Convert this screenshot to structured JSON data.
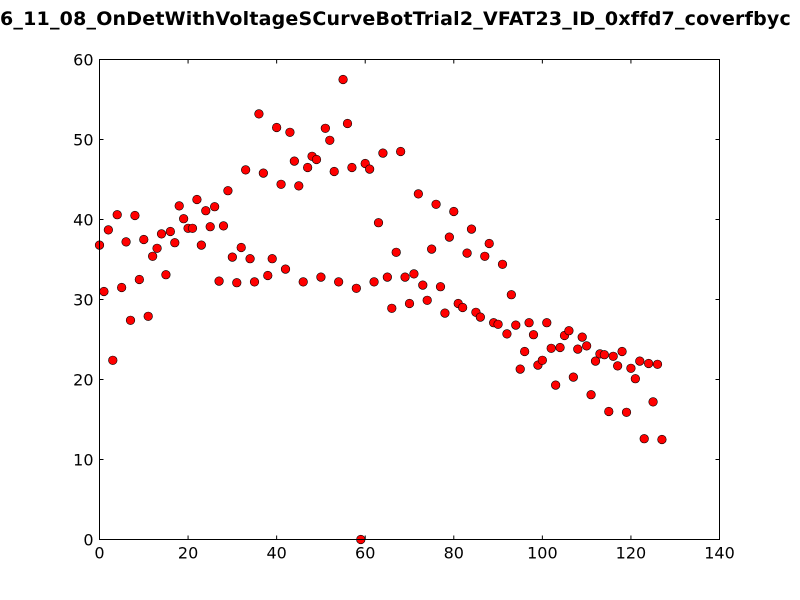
{
  "chart_data": {
    "type": "scatter",
    "title": "6_11_08_OnDetWithVoltageSCurveBotTrial2_VFAT23_ID_0xffd7_coverfbyc",
    "xlabel": "",
    "ylabel": "",
    "xlim": [
      0,
      140
    ],
    "ylim": [
      0,
      60
    ],
    "xticks": [
      "0",
      "20",
      "40",
      "60",
      "80",
      "100",
      "120",
      "140"
    ],
    "yticks": [
      "0",
      "10",
      "20",
      "30",
      "40",
      "50",
      "60"
    ],
    "marker_color": "#ff0000",
    "marker_edge": "#000000",
    "grid": false,
    "series": [
      {
        "points": [
          [
            0,
            36.8
          ],
          [
            1,
            31.0
          ],
          [
            2,
            38.7
          ],
          [
            3,
            22.4
          ],
          [
            4,
            40.6
          ],
          [
            5,
            31.5
          ],
          [
            6,
            37.2
          ],
          [
            7,
            27.4
          ],
          [
            8,
            40.5
          ],
          [
            9,
            32.5
          ],
          [
            10,
            37.5
          ],
          [
            11,
            27.9
          ],
          [
            12,
            35.4
          ],
          [
            13,
            36.4
          ],
          [
            14,
            38.2
          ],
          [
            15,
            33.1
          ],
          [
            16,
            38.5
          ],
          [
            17,
            37.1
          ],
          [
            18,
            41.7
          ],
          [
            19,
            40.1
          ],
          [
            20,
            38.9
          ],
          [
            21,
            38.9
          ],
          [
            22,
            42.5
          ],
          [
            23,
            36.8
          ],
          [
            24,
            41.1
          ],
          [
            25,
            39.1
          ],
          [
            26,
            41.6
          ],
          [
            27,
            32.3
          ],
          [
            28,
            39.2
          ],
          [
            29,
            43.6
          ],
          [
            30,
            35.3
          ],
          [
            31,
            32.1
          ],
          [
            32,
            36.5
          ],
          [
            33,
            46.2
          ],
          [
            34,
            35.1
          ],
          [
            35,
            32.2
          ],
          [
            36,
            53.2
          ],
          [
            37,
            45.8
          ],
          [
            38,
            33.0
          ],
          [
            39,
            35.1
          ],
          [
            40,
            51.5
          ],
          [
            41,
            44.4
          ],
          [
            42,
            33.8
          ],
          [
            43,
            50.9
          ],
          [
            44,
            47.3
          ],
          [
            45,
            44.2
          ],
          [
            46,
            32.2
          ],
          [
            47,
            46.5
          ],
          [
            48,
            47.9
          ],
          [
            49,
            47.5
          ],
          [
            50,
            32.8
          ],
          [
            51,
            51.4
          ],
          [
            52,
            49.9
          ],
          [
            53,
            46.0
          ],
          [
            54,
            32.2
          ],
          [
            55,
            57.5
          ],
          [
            56,
            52.0
          ],
          [
            57,
            46.5
          ],
          [
            58,
            31.4
          ],
          [
            59,
            0.0
          ],
          [
            60,
            47.0
          ],
          [
            61,
            46.3
          ],
          [
            62,
            32.2
          ],
          [
            63,
            39.6
          ],
          [
            64,
            48.3
          ],
          [
            65,
            32.8
          ],
          [
            66,
            28.9
          ],
          [
            67,
            35.9
          ],
          [
            68,
            48.5
          ],
          [
            69,
            32.8
          ],
          [
            70,
            29.5
          ],
          [
            71,
            33.2
          ],
          [
            72,
            43.2
          ],
          [
            73,
            31.8
          ],
          [
            74,
            29.9
          ],
          [
            75,
            36.3
          ],
          [
            76,
            41.9
          ],
          [
            77,
            31.6
          ],
          [
            78,
            28.3
          ],
          [
            79,
            37.8
          ],
          [
            80,
            41.0
          ],
          [
            81,
            29.5
          ],
          [
            82,
            29.0
          ],
          [
            83,
            35.8
          ],
          [
            84,
            38.8
          ],
          [
            85,
            28.4
          ],
          [
            86,
            27.8
          ],
          [
            87,
            35.4
          ],
          [
            88,
            37.0
          ],
          [
            89,
            27.1
          ],
          [
            90,
            26.9
          ],
          [
            91,
            34.4
          ],
          [
            92,
            25.7
          ],
          [
            93,
            30.6
          ],
          [
            94,
            26.8
          ],
          [
            95,
            21.3
          ],
          [
            96,
            23.5
          ],
          [
            97,
            27.1
          ],
          [
            98,
            25.6
          ],
          [
            99,
            21.8
          ],
          [
            100,
            22.4
          ],
          [
            101,
            27.1
          ],
          [
            102,
            23.9
          ],
          [
            103,
            19.3
          ],
          [
            104,
            24.0
          ],
          [
            105,
            25.5
          ],
          [
            106,
            26.1
          ],
          [
            107,
            20.3
          ],
          [
            108,
            23.8
          ],
          [
            109,
            25.3
          ],
          [
            110,
            24.2
          ],
          [
            111,
            18.1
          ],
          [
            112,
            22.3
          ],
          [
            113,
            23.2
          ],
          [
            114,
            23.1
          ],
          [
            115,
            16.0
          ],
          [
            116,
            22.9
          ],
          [
            117,
            21.7
          ],
          [
            118,
            23.5
          ],
          [
            119,
            15.9
          ],
          [
            120,
            21.4
          ],
          [
            121,
            20.1
          ],
          [
            122,
            22.3
          ],
          [
            123,
            12.6
          ],
          [
            124,
            22.0
          ],
          [
            125,
            17.2
          ],
          [
            126,
            21.9
          ],
          [
            127,
            12.5
          ]
        ]
      }
    ]
  }
}
